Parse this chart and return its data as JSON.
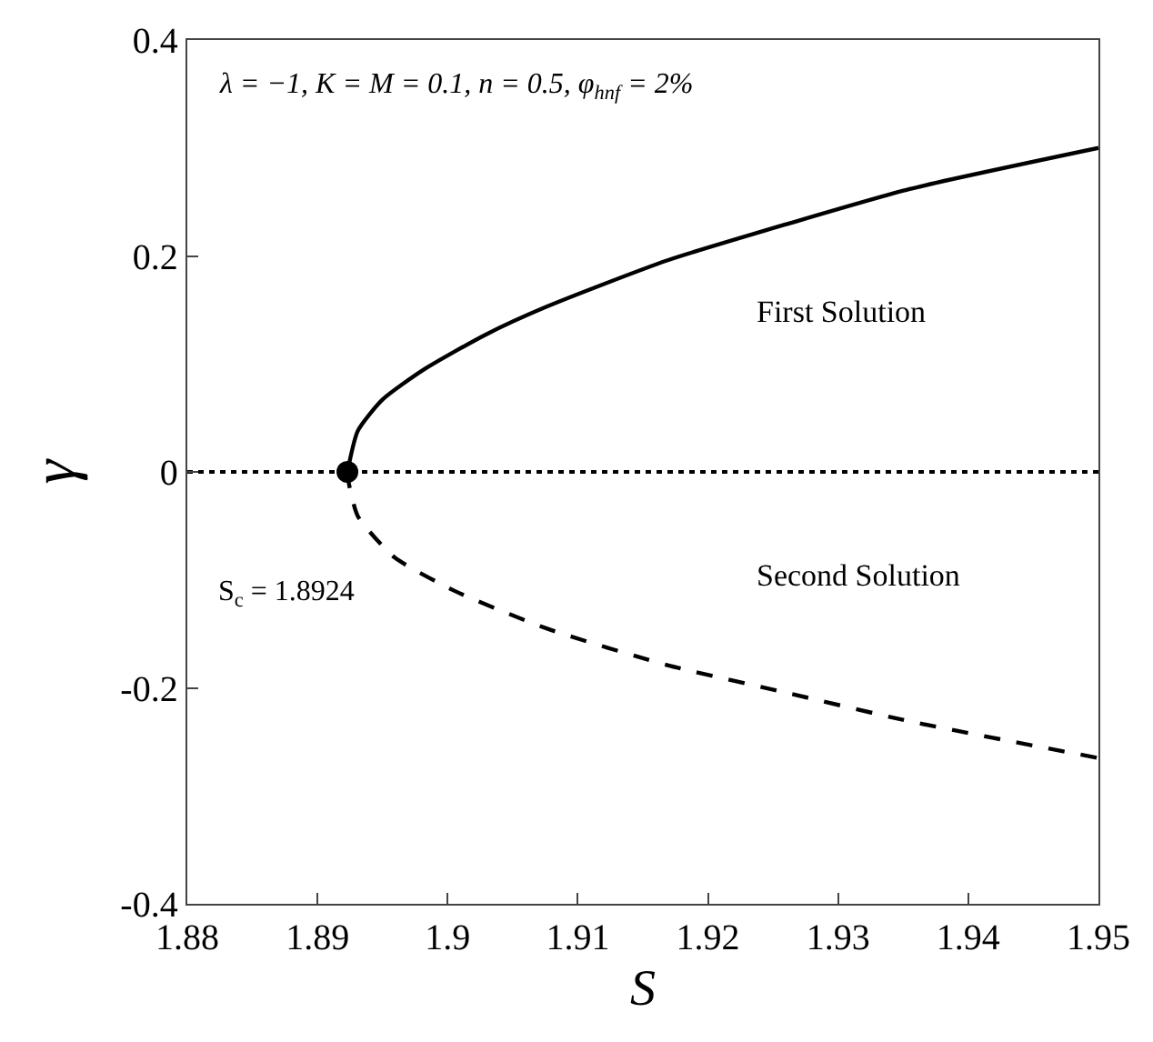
{
  "chart_data": {
    "type": "line",
    "xlabel": "S",
    "ylabel": "γ",
    "xlim": [
      1.88,
      1.95
    ],
    "xticks": [
      1.88,
      1.89,
      1.9,
      1.91,
      1.92,
      1.93,
      1.94,
      1.95
    ],
    "ylim": [
      -0.4,
      0.4
    ],
    "yticks": [
      -0.4,
      -0.2,
      0,
      0.2,
      0.4
    ],
    "series": [
      {
        "name": "First Solution",
        "color": "#000000",
        "line_style": "solid",
        "marker": "none",
        "x": [
          1.8923,
          1.8931,
          1.895,
          1.8982,
          1.9029,
          1.9076,
          1.9169,
          1.9262,
          1.9355,
          1.95
        ],
        "values": [
          0,
          0.038,
          0.067,
          0.095,
          0.127,
          0.153,
          0.196,
          0.23,
          0.262,
          0.3
        ]
      },
      {
        "name": "Second Solution",
        "color": "#000000",
        "line_style": "dashed",
        "marker": "none",
        "x": [
          1.8923,
          1.8924,
          1.8931,
          1.8959,
          1.9005,
          1.9076,
          1.9169,
          1.9262,
          1.9355,
          1.95
        ],
        "values": [
          0,
          -0.01,
          -0.041,
          -0.079,
          -0.11,
          -0.145,
          -0.179,
          -0.205,
          -0.231,
          -0.265
        ]
      },
      {
        "type": "scatter",
        "color": "#000000",
        "marker": "circle",
        "x": [
          1.8923
        ],
        "values": [
          0
        ]
      }
    ],
    "ref_lines": [
      {
        "axis": "y",
        "value": 0,
        "color": "#000000",
        "line_style": "dotted"
      }
    ],
    "annotations": [
      "λ = −1, K = M = 0.1, n = 0.5, φ$_{hnf}$ = 2%",
      "S$_{c}$ = 1.8924"
    ]
  }
}
